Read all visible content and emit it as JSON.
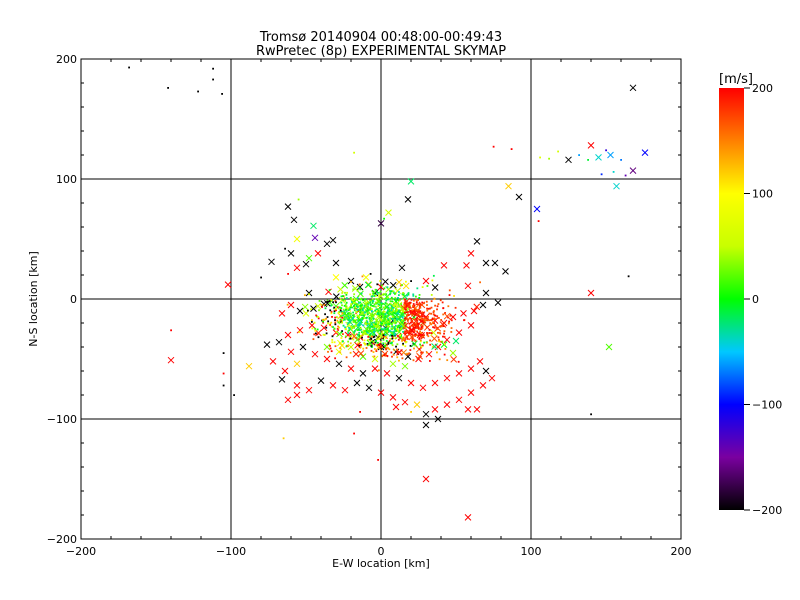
{
  "chart_data": {
    "type": "scatter",
    "title": "Tromsø 20140904 00:48:00-00:49:43",
    "subtitle": "RwPretec (8p) EXPERIMENTAL SKYMAP",
    "xlabel": "E-W location [km]",
    "ylabel": "N-S location [km]",
    "xlim": [
      -200,
      200
    ],
    "ylim": [
      -200,
      200
    ],
    "xticks": [
      -200,
      -100,
      0,
      100,
      200
    ],
    "yticks": [
      -200,
      -100,
      0,
      100,
      200
    ],
    "grid": true,
    "colorbar": {
      "label": "[m/s]",
      "min": -200,
      "max": 200,
      "ticks": [
        200,
        100,
        0,
        -100,
        -200
      ]
    },
    "points_note": "",
    "points": [
      [
        -168,
        193,
        -200,
        "d"
      ],
      [
        -142,
        176,
        -200,
        "d"
      ],
      [
        -122,
        173,
        -200,
        "d"
      ],
      [
        -112,
        192,
        -200,
        "d"
      ],
      [
        -112,
        183,
        -200,
        "d"
      ],
      [
        -106,
        171,
        -200,
        "d"
      ],
      [
        168,
        176,
        -200,
        "x"
      ],
      [
        -18,
        122,
        60,
        "d"
      ],
      [
        140,
        128,
        200,
        "x"
      ],
      [
        176,
        122,
        -100,
        "x"
      ],
      [
        153,
        120,
        -60,
        "x"
      ],
      [
        145,
        118,
        -40,
        "x"
      ],
      [
        138,
        116,
        -10,
        "d"
      ],
      [
        125,
        116,
        -200,
        "x"
      ],
      [
        112,
        117,
        40,
        "d"
      ],
      [
        106,
        118,
        70,
        "d"
      ],
      [
        118,
        123,
        60,
        "d"
      ],
      [
        132,
        120,
        -60,
        "d"
      ],
      [
        150,
        124,
        -120,
        "d"
      ],
      [
        160,
        116,
        -70,
        "d"
      ],
      [
        168,
        107,
        -160,
        "x"
      ],
      [
        163,
        103,
        -140,
        "d"
      ],
      [
        155,
        106,
        -40,
        "d"
      ],
      [
        147,
        104,
        -90,
        "d"
      ],
      [
        157,
        94,
        -40,
        "x"
      ],
      [
        104,
        75,
        -100,
        "x"
      ],
      [
        105,
        65,
        200,
        "d"
      ],
      [
        92,
        85,
        -200,
        "x"
      ],
      [
        85,
        94,
        120,
        "x"
      ],
      [
        75,
        127,
        200,
        "d"
      ],
      [
        87,
        125,
        200,
        "d"
      ],
      [
        20,
        98,
        -20,
        "x"
      ],
      [
        18,
        83,
        -200,
        "x"
      ],
      [
        5,
        72,
        60,
        "x"
      ],
      [
        0,
        63,
        -180,
        "x"
      ],
      [
        2,
        67,
        0,
        "d"
      ],
      [
        -62,
        77,
        -200,
        "x"
      ],
      [
        -55,
        83,
        40,
        "d"
      ],
      [
        -45,
        61,
        -20,
        "x"
      ],
      [
        -44,
        51,
        -140,
        "x"
      ],
      [
        -58,
        66,
        -200,
        "x"
      ],
      [
        -32,
        49,
        -200,
        "x"
      ],
      [
        -36,
        46,
        -200,
        "x"
      ],
      [
        -30,
        30,
        -200,
        "x"
      ],
      [
        -50,
        29,
        -200,
        "x"
      ],
      [
        -60,
        38,
        -200,
        "x"
      ],
      [
        -64,
        42,
        -200,
        "d"
      ],
      [
        -42,
        38,
        200,
        "x"
      ],
      [
        -56,
        26,
        200,
        "x"
      ],
      [
        -62,
        21,
        200,
        "d"
      ],
      [
        -73,
        31,
        -200,
        "x"
      ],
      [
        -80,
        18,
        -200,
        "d"
      ],
      [
        -102,
        12,
        200,
        "x"
      ],
      [
        -140,
        -26,
        200,
        "d"
      ],
      [
        -140,
        -51,
        200,
        "x"
      ],
      [
        -105,
        -62,
        200,
        "d"
      ],
      [
        -105,
        -72,
        -200,
        "d"
      ],
      [
        -98,
        -80,
        -200,
        "d"
      ],
      [
        -105,
        -45,
        -200,
        "d"
      ],
      [
        165,
        19,
        -200,
        "d"
      ],
      [
        140,
        5,
        200,
        "x"
      ],
      [
        152,
        -40,
        20,
        "x"
      ],
      [
        140,
        -96,
        -200,
        "d"
      ],
      [
        64,
        48,
        -200,
        "x"
      ],
      [
        76,
        30,
        -200,
        "x"
      ],
      [
        70,
        30,
        -200,
        "x"
      ],
      [
        83,
        23,
        -200,
        "x"
      ],
      [
        60,
        38,
        200,
        "x"
      ],
      [
        57,
        28,
        200,
        "x"
      ],
      [
        66,
        14,
        160,
        "d"
      ],
      [
        58,
        11,
        200,
        "x"
      ],
      [
        70,
        5,
        -200,
        "x"
      ],
      [
        78,
        -3,
        -200,
        "x"
      ],
      [
        42,
        28,
        200,
        "x"
      ],
      [
        30,
        15,
        200,
        "x"
      ],
      [
        20,
        15,
        -200,
        "d"
      ],
      [
        14,
        26,
        -200,
        "x"
      ],
      [
        -7,
        21,
        -200,
        "d"
      ],
      [
        -20,
        15,
        -200,
        "x"
      ],
      [
        -14,
        10,
        -200,
        "x"
      ],
      [
        -8,
        12,
        120,
        "x"
      ],
      [
        0,
        10,
        200,
        "x"
      ],
      [
        -4,
        5,
        -200,
        "x"
      ],
      [
        5,
        8,
        40,
        "x"
      ],
      [
        -27,
        8,
        60,
        "x"
      ],
      [
        -35,
        6,
        200,
        "x"
      ],
      [
        -48,
        5,
        -200,
        "x"
      ],
      [
        -60,
        -5,
        200,
        "x"
      ],
      [
        -66,
        -12,
        200,
        "x"
      ],
      [
        -54,
        -10,
        -200,
        "x"
      ],
      [
        -45,
        -8,
        -200,
        "x"
      ],
      [
        -38,
        -4,
        -200,
        "x"
      ],
      [
        -30,
        -6,
        20,
        "x"
      ],
      [
        -22,
        -8,
        60,
        "x"
      ],
      [
        -15,
        -10,
        200,
        "x"
      ],
      [
        -8,
        -8,
        40,
        "x"
      ],
      [
        0,
        -12,
        60,
        "x"
      ],
      [
        6,
        -10,
        20,
        "x"
      ],
      [
        12,
        -5,
        60,
        "x"
      ],
      [
        18,
        -8,
        40,
        "x"
      ],
      [
        24,
        -10,
        200,
        "x"
      ],
      [
        30,
        -15,
        200,
        "x"
      ],
      [
        36,
        -18,
        200,
        "x"
      ],
      [
        42,
        -20,
        200,
        "x"
      ],
      [
        48,
        -15,
        200,
        "x"
      ],
      [
        55,
        -12,
        200,
        "x"
      ],
      [
        62,
        -10,
        200,
        "x"
      ],
      [
        68,
        -5,
        -200,
        "x"
      ],
      [
        60,
        -22,
        200,
        "x"
      ],
      [
        52,
        -28,
        200,
        "x"
      ],
      [
        44,
        -34,
        200,
        "x"
      ],
      [
        38,
        -40,
        200,
        "x"
      ],
      [
        32,
        -46,
        200,
        "x"
      ],
      [
        25,
        -50,
        200,
        "x"
      ],
      [
        18,
        -48,
        -200,
        "x"
      ],
      [
        10,
        -44,
        -200,
        "x"
      ],
      [
        2,
        -40,
        -200,
        "x"
      ],
      [
        -6,
        -36,
        -200,
        "x"
      ],
      [
        -14,
        -32,
        200,
        "x"
      ],
      [
        -22,
        -30,
        200,
        "x"
      ],
      [
        -30,
        -28,
        200,
        "x"
      ],
      [
        -38,
        -24,
        200,
        "x"
      ],
      [
        -46,
        -22,
        200,
        "x"
      ],
      [
        -54,
        -26,
        200,
        "x"
      ],
      [
        -62,
        -30,
        200,
        "x"
      ],
      [
        -68,
        -36,
        -200,
        "x"
      ],
      [
        -60,
        -44,
        200,
        "x"
      ],
      [
        -52,
        -40,
        -200,
        "x"
      ],
      [
        -44,
        -46,
        200,
        "x"
      ],
      [
        -36,
        -50,
        200,
        "x"
      ],
      [
        -28,
        -54,
        -200,
        "x"
      ],
      [
        -20,
        -58,
        200,
        "x"
      ],
      [
        -12,
        -62,
        -200,
        "x"
      ],
      [
        -4,
        -58,
        200,
        "x"
      ],
      [
        4,
        -62,
        200,
        "x"
      ],
      [
        12,
        -66,
        -200,
        "x"
      ],
      [
        20,
        -70,
        200,
        "x"
      ],
      [
        28,
        -74,
        200,
        "x"
      ],
      [
        36,
        -70,
        200,
        "x"
      ],
      [
        44,
        -66,
        200,
        "x"
      ],
      [
        52,
        -62,
        200,
        "x"
      ],
      [
        60,
        -58,
        200,
        "x"
      ],
      [
        66,
        -52,
        200,
        "x"
      ],
      [
        70,
        -60,
        -200,
        "x"
      ],
      [
        74,
        -66,
        200,
        "x"
      ],
      [
        68,
        -72,
        200,
        "x"
      ],
      [
        60,
        -78,
        200,
        "x"
      ],
      [
        52,
        -84,
        200,
        "x"
      ],
      [
        44,
        -88,
        200,
        "x"
      ],
      [
        36,
        -92,
        200,
        "x"
      ],
      [
        30,
        -96,
        -200,
        "x"
      ],
      [
        38,
        -100,
        -200,
        "x"
      ],
      [
        30,
        -105,
        -200,
        "x"
      ],
      [
        58,
        -92,
        200,
        "x"
      ],
      [
        64,
        -92,
        200,
        "x"
      ],
      [
        -56,
        -54,
        120,
        "x"
      ],
      [
        -64,
        -60,
        200,
        "x"
      ],
      [
        -72,
        -52,
        200,
        "x"
      ],
      [
        -76,
        -38,
        -200,
        "x"
      ],
      [
        -88,
        -56,
        120,
        "x"
      ],
      [
        -66,
        -67,
        -200,
        "x"
      ],
      [
        -56,
        -72,
        200,
        "x"
      ],
      [
        -48,
        -76,
        200,
        "x"
      ],
      [
        -56,
        -80,
        200,
        "x"
      ],
      [
        -62,
        -84,
        200,
        "x"
      ],
      [
        -40,
        -68,
        -200,
        "x"
      ],
      [
        -32,
        -72,
        200,
        "x"
      ],
      [
        -24,
        -76,
        200,
        "x"
      ],
      [
        -16,
        -70,
        -200,
        "x"
      ],
      [
        -8,
        -74,
        -200,
        "x"
      ],
      [
        0,
        -78,
        200,
        "x"
      ],
      [
        8,
        -82,
        200,
        "x"
      ],
      [
        16,
        -86,
        200,
        "x"
      ],
      [
        24,
        -88,
        120,
        "x"
      ],
      [
        10,
        -90,
        200,
        "x"
      ],
      [
        0,
        -40,
        -200,
        "x"
      ],
      [
        -2,
        -32,
        -200,
        "x"
      ],
      [
        3,
        -24,
        -200,
        "x"
      ],
      [
        8,
        -18,
        -200,
        "x"
      ],
      [
        -3,
        -18,
        40,
        "x"
      ],
      [
        14,
        -22,
        -200,
        "x"
      ],
      [
        20,
        -26,
        200,
        "x"
      ],
      [
        26,
        -30,
        200,
        "x"
      ],
      [
        30,
        -150,
        200,
        "x"
      ],
      [
        58,
        -182,
        200,
        "x"
      ],
      [
        -2,
        -134,
        200,
        "d"
      ],
      [
        -18,
        -112,
        200,
        "d"
      ],
      [
        -65,
        -116,
        120,
        "d"
      ],
      [
        -14,
        -94,
        200,
        "d"
      ],
      [
        20,
        -94,
        120,
        "d"
      ],
      [
        50,
        -35,
        -20,
        "x"
      ],
      [
        48,
        -45,
        40,
        "x"
      ],
      [
        42,
        -38,
        0,
        "x"
      ],
      [
        35,
        -28,
        60,
        "x"
      ],
      [
        28,
        -20,
        30,
        "x"
      ],
      [
        22,
        -15,
        0,
        "x"
      ],
      [
        16,
        -12,
        20,
        "x"
      ],
      [
        10,
        -2,
        0,
        "x"
      ],
      [
        4,
        2,
        10,
        "x"
      ],
      [
        -2,
        -2,
        40,
        "x"
      ],
      [
        -10,
        -5,
        20,
        "x"
      ],
      [
        -18,
        -2,
        30,
        "x"
      ],
      [
        -26,
        -1,
        50,
        "x"
      ],
      [
        -34,
        -3,
        20,
        "x"
      ],
      [
        -42,
        -6,
        60,
        "x"
      ],
      [
        -50,
        -12,
        70,
        "x"
      ],
      [
        -20,
        -40,
        50,
        "x"
      ],
      [
        -28,
        -44,
        80,
        "x"
      ],
      [
        -36,
        -40,
        30,
        "x"
      ],
      [
        -12,
        -48,
        20,
        "x"
      ],
      [
        -4,
        -50,
        60,
        "x"
      ],
      [
        8,
        -54,
        40,
        "x"
      ],
      [
        16,
        -56,
        30,
        "x"
      ],
      [
        -10,
        18,
        90,
        "x"
      ],
      [
        -30,
        18,
        100,
        "x"
      ],
      [
        12,
        14,
        120,
        "x"
      ],
      [
        -56,
        50,
        90,
        "x"
      ],
      [
        -48,
        34,
        20,
        "x"
      ]
    ]
  }
}
